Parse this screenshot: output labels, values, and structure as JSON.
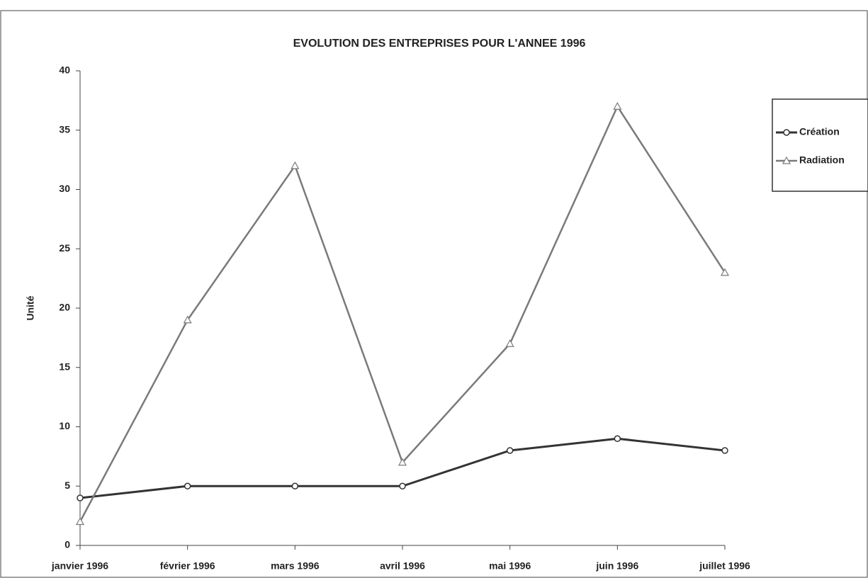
{
  "chart_data": {
    "type": "line",
    "title": "EVOLUTION DES ENTREPRISES POUR L'ANNEE 1996",
    "y_label": "Unité",
    "categories": [
      "janvier 1996",
      "février 1996",
      "mars 1996",
      "avril 1996",
      "mai 1996",
      "juin 1996",
      "juillet 1996"
    ],
    "series": [
      {
        "name": "Création",
        "color": "#333333",
        "marker": "circle",
        "values": [
          4,
          5,
          5,
          5,
          8,
          9,
          8
        ]
      },
      {
        "name": "Radiation",
        "color": "#7a7a7a",
        "marker": "triangle",
        "values": [
          2,
          19,
          32,
          7,
          17,
          37,
          23
        ]
      }
    ],
    "ylim": [
      0,
      40
    ],
    "yticks": [
      0,
      5,
      10,
      15,
      20,
      25,
      30,
      35,
      40
    ],
    "grid": false,
    "legend": "right"
  }
}
